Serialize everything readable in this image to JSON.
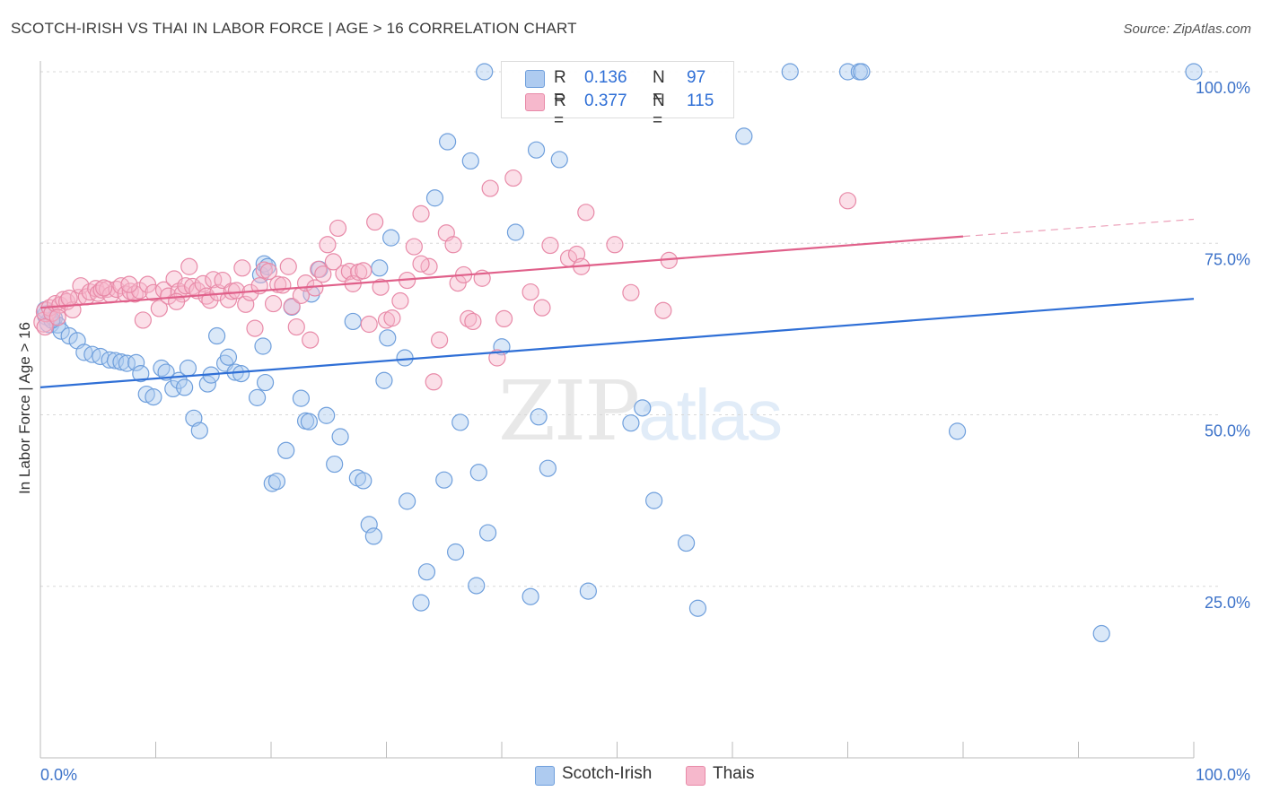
{
  "header": {
    "title": "SCOTCH-IRISH VS THAI IN LABOR FORCE | AGE > 16 CORRELATION CHART",
    "source": "Source: ZipAtlas.com"
  },
  "legend": {
    "r_label": "R =",
    "n_label": "N =",
    "series": [
      {
        "name": "Scotch-Irish",
        "r": "0.136",
        "n": "97"
      },
      {
        "name": "Thais",
        "r": "0.377",
        "n": "115"
      }
    ]
  },
  "watermark": {
    "zip": "ZIP",
    "atlas": "atlas"
  },
  "colors": {
    "scotch_fill": "#aecbf0",
    "scotch_stroke": "#6f9fdc",
    "scotch_line": "#2f6fd6",
    "thai_fill": "#f6b8cc",
    "thai_stroke": "#e88aa8",
    "thai_line": "#e0608a",
    "tick_label": "#3c72c9",
    "grid": "#d8d8d8"
  },
  "chart_data": {
    "type": "scatter",
    "title": "SCOTCH-IRISH VS THAI IN LABOR FORCE | AGE > 16 CORRELATION CHART",
    "xlabel": "",
    "ylabel": "In Labor Force | Age > 16",
    "xlim": [
      0,
      100
    ],
    "ylim": [
      0,
      100
    ],
    "x_tick_labels": [
      "0.0%",
      "100.0%"
    ],
    "y_ticks": [
      25,
      50,
      75,
      100
    ],
    "y_tick_labels": [
      "25.0%",
      "50.0%",
      "75.0%",
      "100.0%"
    ],
    "grid": true,
    "legend_position": "top-center",
    "series": [
      {
        "name": "Scotch-Irish",
        "trend": {
          "x": [
            0,
            100
          ],
          "y": [
            54.0,
            66.9
          ]
        },
        "points": [
          [
            0.6,
            64.5
          ],
          [
            0.8,
            63.4
          ],
          [
            1.2,
            64.1
          ],
          [
            1.5,
            63.1
          ],
          [
            1.8,
            62.2
          ],
          [
            2.5,
            61.5
          ],
          [
            3.2,
            60.8
          ],
          [
            3.8,
            59.1
          ],
          [
            4.5,
            58.8
          ],
          [
            5.2,
            58.5
          ],
          [
            6.0,
            58.0
          ],
          [
            6.5,
            57.9
          ],
          [
            7.0,
            57.7
          ],
          [
            7.5,
            57.5
          ],
          [
            8.3,
            57.6
          ],
          [
            8.7,
            56.0
          ],
          [
            9.2,
            53.0
          ],
          [
            9.8,
            52.6
          ],
          [
            10.5,
            56.8
          ],
          [
            10.9,
            56.2
          ],
          [
            11.5,
            53.8
          ],
          [
            12.0,
            55.0
          ],
          [
            12.5,
            54.0
          ],
          [
            12.8,
            56.8
          ],
          [
            13.3,
            49.5
          ],
          [
            13.8,
            47.7
          ],
          [
            14.5,
            54.5
          ],
          [
            14.8,
            55.8
          ],
          [
            15.3,
            61.5
          ],
          [
            16.0,
            57.5
          ],
          [
            16.3,
            58.4
          ],
          [
            16.9,
            56.2
          ],
          [
            17.4,
            56.0
          ],
          [
            18.8,
            52.5
          ],
          [
            19.1,
            70.4
          ],
          [
            19.4,
            72.0
          ],
          [
            19.7,
            71.6
          ],
          [
            19.3,
            60.0
          ],
          [
            19.5,
            54.7
          ],
          [
            20.1,
            40.0
          ],
          [
            20.5,
            40.3
          ],
          [
            21.3,
            44.8
          ],
          [
            21.8,
            65.7
          ],
          [
            22.6,
            52.4
          ],
          [
            23.0,
            49.1
          ],
          [
            23.3,
            49.0
          ],
          [
            23.5,
            67.6
          ],
          [
            24.2,
            71.2
          ],
          [
            24.8,
            49.9
          ],
          [
            25.5,
            42.8
          ],
          [
            26.0,
            46.8
          ],
          [
            27.1,
            63.6
          ],
          [
            27.5,
            40.8
          ],
          [
            28.0,
            40.4
          ],
          [
            28.5,
            34.0
          ],
          [
            28.9,
            32.3
          ],
          [
            29.4,
            71.4
          ],
          [
            29.8,
            55.0
          ],
          [
            30.1,
            61.2
          ],
          [
            30.4,
            75.8
          ],
          [
            31.6,
            58.3
          ],
          [
            31.8,
            37.4
          ],
          [
            33.0,
            22.6
          ],
          [
            33.5,
            27.1
          ],
          [
            34.2,
            81.6
          ],
          [
            35.0,
            40.5
          ],
          [
            35.3,
            89.8
          ],
          [
            36.0,
            30.0
          ],
          [
            36.4,
            48.9
          ],
          [
            37.3,
            87.0
          ],
          [
            37.8,
            25.1
          ],
          [
            38.0,
            41.6
          ],
          [
            38.5,
            100.0
          ],
          [
            38.8,
            32.8
          ],
          [
            40.0,
            59.9
          ],
          [
            41.2,
            76.6
          ],
          [
            42.5,
            23.5
          ],
          [
            43.0,
            88.6
          ],
          [
            43.2,
            49.7
          ],
          [
            44.0,
            42.2
          ],
          [
            45.0,
            87.2
          ],
          [
            47.5,
            24.3
          ],
          [
            51.2,
            48.8
          ],
          [
            52.2,
            51.0
          ],
          [
            53.2,
            37.5
          ],
          [
            56.0,
            31.3
          ],
          [
            57.0,
            21.8
          ],
          [
            61.0,
            90.6
          ],
          [
            65.0,
            100.0
          ],
          [
            70.0,
            100.0
          ],
          [
            71.0,
            100.0
          ],
          [
            71.2,
            100.0
          ],
          [
            79.5,
            47.6
          ],
          [
            92.0,
            18.1
          ],
          [
            100.0,
            100.0
          ],
          [
            0.4,
            65.3
          ],
          [
            1.0,
            63.8
          ]
        ]
      },
      {
        "name": "Thais",
        "trend": {
          "x": [
            0,
            80
          ],
          "y": [
            65.6,
            76.0
          ]
        },
        "trend_dashed": {
          "x": [
            80,
            100
          ],
          "y": [
            76.0,
            78.5
          ]
        },
        "points": [
          [
            0.3,
            63.5
          ],
          [
            0.5,
            65.0
          ],
          [
            0.8,
            65.6
          ],
          [
            1.0,
            64.8
          ],
          [
            1.3,
            66.2
          ],
          [
            1.7,
            66.0
          ],
          [
            2.0,
            66.8
          ],
          [
            2.3,
            66.5
          ],
          [
            2.8,
            65.3
          ],
          [
            3.3,
            67.1
          ],
          [
            3.5,
            68.8
          ],
          [
            4.0,
            67.2
          ],
          [
            4.3,
            67.9
          ],
          [
            4.8,
            68.4
          ],
          [
            5.0,
            67.7
          ],
          [
            5.3,
            68.2
          ],
          [
            5.8,
            68.3
          ],
          [
            6.1,
            67.5
          ],
          [
            6.6,
            68.3
          ],
          [
            7.0,
            68.8
          ],
          [
            7.4,
            67.6
          ],
          [
            7.8,
            68.0
          ],
          [
            8.2,
            67.6
          ],
          [
            8.6,
            68.1
          ],
          [
            8.9,
            63.8
          ],
          [
            9.3,
            69.0
          ],
          [
            9.8,
            67.8
          ],
          [
            10.3,
            65.5
          ],
          [
            10.7,
            68.2
          ],
          [
            11.1,
            67.3
          ],
          [
            11.6,
            69.8
          ],
          [
            12.0,
            68.0
          ],
          [
            12.3,
            67.6
          ],
          [
            12.6,
            68.8
          ],
          [
            12.9,
            71.6
          ],
          [
            13.2,
            68.7
          ],
          [
            13.6,
            68.1
          ],
          [
            14.1,
            69.1
          ],
          [
            14.4,
            67.3
          ],
          [
            14.7,
            66.7
          ],
          [
            15.0,
            69.7
          ],
          [
            15.4,
            67.8
          ],
          [
            15.8,
            69.6
          ],
          [
            16.3,
            66.8
          ],
          [
            16.6,
            68.0
          ],
          [
            17.0,
            68.1
          ],
          [
            17.5,
            71.4
          ],
          [
            17.8,
            66.1
          ],
          [
            18.2,
            67.8
          ],
          [
            18.6,
            62.6
          ],
          [
            19.0,
            68.8
          ],
          [
            19.4,
            71.1
          ],
          [
            19.8,
            70.9
          ],
          [
            20.2,
            66.2
          ],
          [
            20.6,
            69.0
          ],
          [
            21.0,
            68.9
          ],
          [
            21.5,
            71.6
          ],
          [
            21.8,
            65.8
          ],
          [
            22.2,
            62.8
          ],
          [
            22.6,
            67.4
          ],
          [
            23.0,
            69.2
          ],
          [
            23.4,
            60.9
          ],
          [
            23.8,
            68.5
          ],
          [
            24.1,
            71.2
          ],
          [
            24.5,
            70.5
          ],
          [
            24.9,
            74.8
          ],
          [
            25.4,
            72.3
          ],
          [
            25.8,
            77.2
          ],
          [
            26.3,
            70.6
          ],
          [
            26.8,
            70.9
          ],
          [
            27.1,
            69.1
          ],
          [
            27.6,
            70.8
          ],
          [
            28.0,
            71.0
          ],
          [
            28.5,
            63.2
          ],
          [
            29.0,
            78.1
          ],
          [
            29.5,
            68.6
          ],
          [
            30.0,
            63.8
          ],
          [
            30.5,
            64.1
          ],
          [
            31.2,
            66.6
          ],
          [
            31.8,
            69.6
          ],
          [
            32.4,
            74.5
          ],
          [
            33.0,
            79.3
          ],
          [
            33.7,
            71.6
          ],
          [
            34.1,
            54.8
          ],
          [
            34.6,
            60.9
          ],
          [
            35.2,
            76.5
          ],
          [
            35.8,
            74.8
          ],
          [
            36.2,
            69.2
          ],
          [
            36.7,
            70.4
          ],
          [
            37.1,
            64.0
          ],
          [
            37.5,
            63.6
          ],
          [
            38.3,
            69.9
          ],
          [
            39.0,
            83.0
          ],
          [
            39.6,
            58.3
          ],
          [
            40.2,
            64.0
          ],
          [
            41.0,
            84.5
          ],
          [
            42.5,
            67.9
          ],
          [
            43.5,
            65.6
          ],
          [
            44.2,
            74.7
          ],
          [
            45.8,
            72.8
          ],
          [
            46.5,
            73.4
          ],
          [
            46.9,
            71.6
          ],
          [
            47.3,
            79.5
          ],
          [
            49.8,
            74.8
          ],
          [
            51.2,
            67.8
          ],
          [
            54.0,
            65.2
          ],
          [
            54.5,
            72.5
          ],
          [
            70.0,
            81.2
          ],
          [
            0.4,
            62.8
          ],
          [
            1.5,
            64.2
          ],
          [
            2.5,
            67.0
          ],
          [
            5.5,
            68.5
          ],
          [
            7.7,
            69.0
          ],
          [
            11.8,
            66.5
          ],
          [
            33.0,
            72.0
          ]
        ]
      }
    ]
  }
}
